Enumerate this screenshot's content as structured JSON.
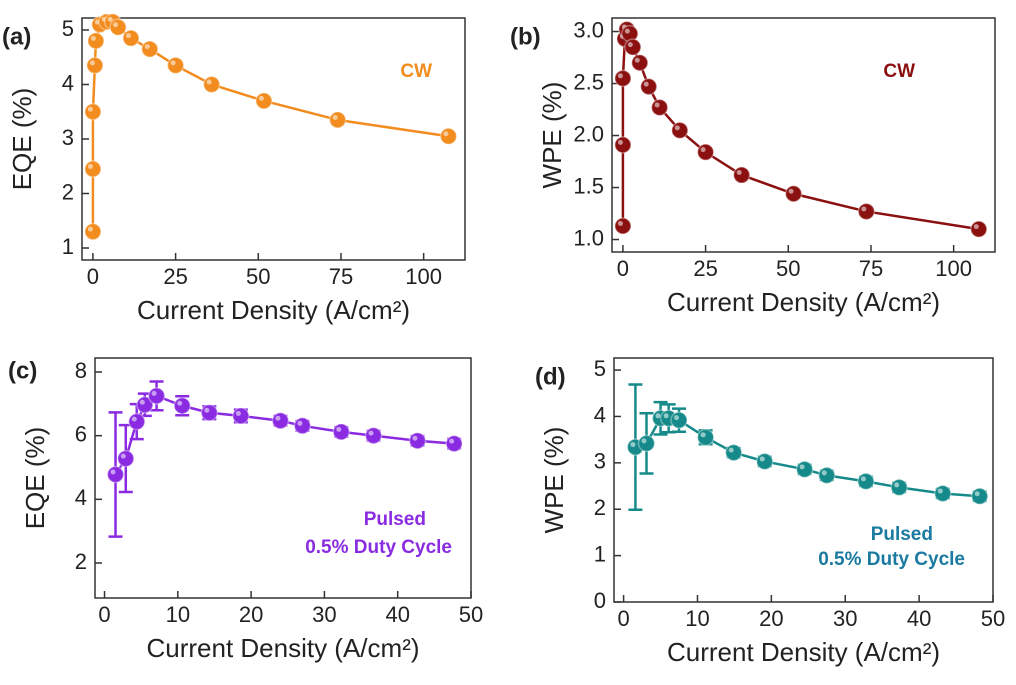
{
  "chart_data": [
    {
      "type": "line",
      "panel_label": "(a)",
      "ylabel": "EQE (%)",
      "xlabel": "Current Density (A/cm²)",
      "annotation": [
        "CW"
      ],
      "color": "#f28c1e",
      "annotation_color": "#f28c1e",
      "x": [
        0,
        0,
        0,
        0.6,
        0.9,
        2.1,
        4.2,
        6,
        7.6,
        11.5,
        17.2,
        25,
        35.9,
        51.7,
        74,
        107.5
      ],
      "values": [
        1.3,
        2.45,
        3.5,
        4.35,
        4.8,
        5.1,
        5.15,
        5.15,
        5.05,
        4.85,
        4.65,
        4.35,
        4.0,
        3.7,
        3.35,
        3.05
      ],
      "xlim": [
        -3.3,
        112.5
      ],
      "ylim": [
        0.78,
        5.22
      ],
      "xticks": [
        0,
        25,
        50,
        75,
        100
      ],
      "yticks": [
        1,
        2,
        3,
        4,
        5
      ]
    },
    {
      "type": "line",
      "panel_label": "(b)",
      "ylabel": "WPE (%)",
      "xlabel": "Current Density (A/cm²)",
      "annotation": [
        "CW"
      ],
      "color": "#8b1010",
      "annotation_color": "#8b1010",
      "x": [
        0,
        0,
        0,
        0.6,
        1.2,
        2.1,
        3,
        5.1,
        7.8,
        11.1,
        17.2,
        25,
        35.9,
        51.6,
        73.6,
        107.6
      ],
      "values": [
        1.13,
        1.91,
        2.55,
        2.93,
        3.02,
        2.98,
        2.85,
        2.7,
        2.47,
        2.27,
        2.05,
        1.84,
        1.62,
        1.44,
        1.27,
        1.1
      ],
      "xlim": [
        -3.3,
        112.5
      ],
      "ylim": [
        0.88,
        3.13
      ],
      "xticks": [
        0,
        25,
        50,
        75,
        100
      ],
      "yticks": [
        {
          "value": 1,
          "label": "1.0"
        },
        1.5,
        {
          "value": 2,
          "label": "2.0"
        },
        2.5,
        {
          "value": 3,
          "label": "3.0"
        }
      ]
    },
    {
      "type": "line",
      "panel_label": "(c)",
      "ylabel": "EQE (%)",
      "xlabel": "Current Density (A/cm²)",
      "annotation": [
        "Pulsed",
        "0.5% Duty Cycle"
      ],
      "color": "#8a2be2",
      "annotation_color": "#8a2be2",
      "x": [
        1.5,
        2.9,
        4.4,
        5.5,
        7.1,
        10.6,
        14.3,
        18.6,
        24,
        27,
        32.3,
        36.7,
        42.7,
        47.7
      ],
      "values": [
        4.78,
        5.28,
        6.44,
        6.97,
        7.25,
        6.94,
        6.72,
        6.62,
        6.47,
        6.31,
        6.12,
        6.0,
        5.84,
        5.75
      ],
      "errors": [
        1.95,
        1.05,
        0.55,
        0.35,
        0.45,
        0.3,
        0.2,
        0.2,
        0.15,
        0.15,
        0.15,
        0.15,
        0.15,
        0.15
      ],
      "xlim": [
        -1.3,
        50
      ],
      "ylim": [
        0.9,
        8.44
      ],
      "xticks": [
        0,
        10,
        20,
        30,
        40,
        50
      ],
      "yticks": [
        2,
        4,
        6,
        8
      ]
    },
    {
      "type": "line",
      "panel_label": "(d)",
      "ylabel": "WPE (%)",
      "xlabel": "Current Density (A/cm²)",
      "annotation": [
        "Pulsed",
        "0.5% Duty Cycle"
      ],
      "color": "#168a8a",
      "annotation_color": "#1a7aa0",
      "x": [
        1.6,
        3.1,
        5,
        6.1,
        7.5,
        11.1,
        14.9,
        19.1,
        24.5,
        27.5,
        32.8,
        37.3,
        43.2,
        48.2
      ],
      "values": [
        3.34,
        3.42,
        3.96,
        3.96,
        3.92,
        3.55,
        3.22,
        3.03,
        2.86,
        2.73,
        2.6,
        2.47,
        2.34,
        2.28
      ],
      "errors": [
        1.35,
        0.65,
        0.35,
        0.3,
        0.25,
        0.15,
        0.1,
        0.1,
        0.1,
        0.1,
        0.1,
        0.1,
        0.1,
        0.1
      ],
      "xlim": [
        -1.3,
        50
      ],
      "ylim": [
        0,
        5.26
      ],
      "xticks": [
        0,
        10,
        20,
        30,
        40,
        50
      ],
      "yticks": [
        0,
        1,
        2,
        3,
        4,
        5
      ]
    }
  ]
}
